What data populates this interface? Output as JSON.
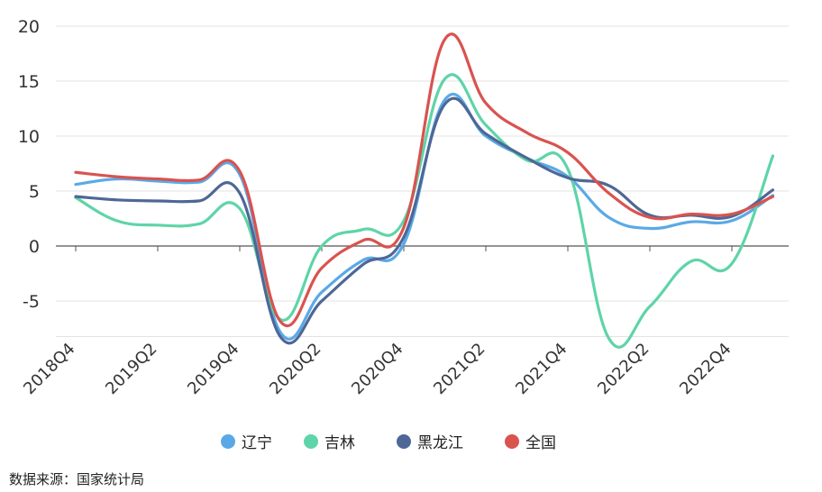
{
  "chart_data": {
    "type": "line",
    "title": "",
    "xlabel": "",
    "ylabel": "",
    "ylim": [
      -8,
      20
    ],
    "yticks": [
      20,
      15,
      10,
      5,
      0,
      -5
    ],
    "categories": [
      "2018Q4",
      "2019Q1",
      "2019Q2",
      "2019Q3",
      "2019Q4",
      "2020Q1",
      "2020Q2",
      "2020Q3",
      "2020Q4",
      "2021Q1",
      "2021Q2",
      "2021Q3",
      "2021Q4",
      "2022Q1",
      "2022Q2",
      "2022Q3",
      "2022Q4",
      "2023Q1"
    ],
    "tick_labels": [
      "2018Q4",
      "",
      "2019Q2",
      "",
      "2019Q4",
      "",
      "2020Q2",
      "",
      "2020Q4",
      "",
      "2021Q2",
      "",
      "2021Q4",
      "",
      "2022Q2",
      "",
      "2022Q4",
      ""
    ],
    "legend_position": "bottom",
    "grid": true,
    "series": [
      {
        "name": "辽宁",
        "color": "#5aa9e6",
        "values": [
          5.6,
          6.1,
          5.9,
          5.8,
          6.5,
          -7.9,
          -4.2,
          -1.3,
          0.2,
          13.3,
          10.0,
          8.0,
          6.3,
          2.6,
          1.6,
          2.2,
          2.3,
          4.6
        ]
      },
      {
        "name": "吉林",
        "color": "#5fd4a8",
        "values": [
          4.4,
          2.3,
          1.9,
          2.0,
          3.4,
          -6.7,
          0.0,
          1.5,
          2.3,
          15.2,
          11.0,
          7.8,
          7.0,
          -8.4,
          -5.5,
          -1.4,
          -1.6,
          8.2
        ]
      },
      {
        "name": "黑龙江",
        "color": "#4e6796",
        "values": [
          4.5,
          4.2,
          4.1,
          4.1,
          4.8,
          -8.3,
          -5.0,
          -1.7,
          0.8,
          12.9,
          10.2,
          8.0,
          6.2,
          5.5,
          2.8,
          2.8,
          2.7,
          5.1
        ]
      },
      {
        "name": "全国",
        "color": "#d9534f",
        "values": [
          6.7,
          6.3,
          6.1,
          6.0,
          6.8,
          -6.9,
          -2.0,
          0.5,
          1.7,
          18.8,
          13.0,
          10.3,
          8.5,
          4.8,
          2.6,
          2.9,
          2.9,
          4.5
        ]
      }
    ]
  },
  "footnote": "数据来源：国家统计局"
}
